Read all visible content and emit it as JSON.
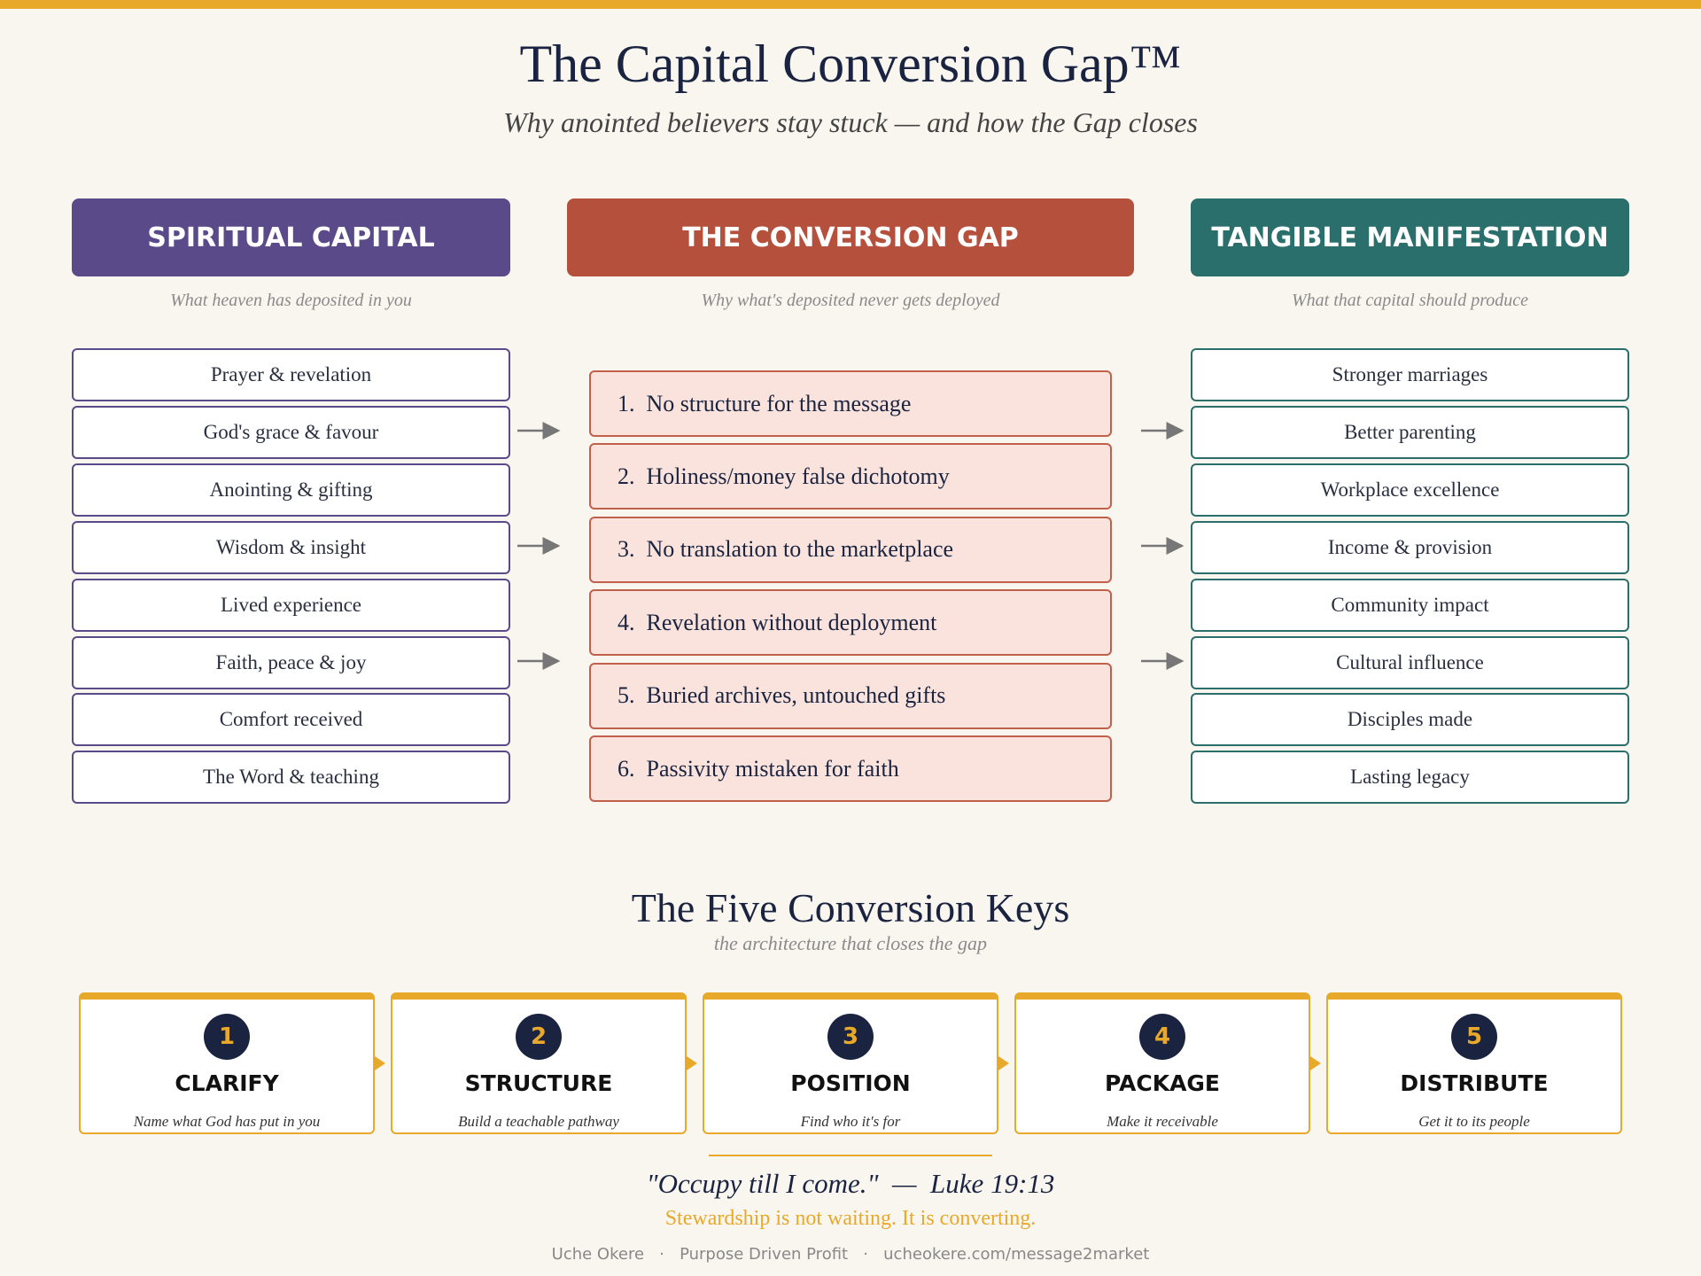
{
  "header": {
    "title": "The Capital Conversion Gap™",
    "subtitle": "Why anointed believers stay stuck — and how the Gap closes"
  },
  "columns": [
    {
      "title": "SPIRITUAL CAPITAL",
      "subtitle": "What heaven has deposited in you",
      "items": [
        "Prayer & revelation",
        "God's grace & favour",
        "Anointing & gifting",
        "Wisdom & insight",
        "Lived experience",
        "Faith, peace & joy",
        "Comfort received",
        "The Word & teaching"
      ]
    },
    {
      "title": "THE CONVERSION GAP",
      "subtitle": "Why what's deposited never gets deployed",
      "items": [
        "1.  No structure for the message",
        "2.  Holiness/money false dichotomy",
        "3.  No translation to the marketplace",
        "4.  Revelation without deployment",
        "5.  Buried archives, untouched gifts",
        "6.  Passivity mistaken for faith"
      ]
    },
    {
      "title": "TANGIBLE MANIFESTATION",
      "subtitle": "What that capital should produce",
      "items": [
        "Stronger marriages",
        "Better parenting",
        "Workplace excellence",
        "Income & provision",
        "Community impact",
        "Cultural influence",
        "Disciples made",
        "Lasting legacy"
      ]
    }
  ],
  "keys": {
    "title": "The Five Conversion Keys",
    "subtitle": "the architecture that closes the gap",
    "items": [
      {
        "number": "1",
        "name": "CLARIFY",
        "description": "Name what God has put in you"
      },
      {
        "number": "2",
        "name": "STRUCTURE",
        "description": "Build a teachable pathway"
      },
      {
        "number": "3",
        "name": "POSITION",
        "description": "Find who it's for"
      },
      {
        "number": "4",
        "name": "PACKAGE",
        "description": "Make it receivable"
      },
      {
        "number": "5",
        "name": "DISTRIBUTE",
        "description": "Get it to its people"
      }
    ]
  },
  "quote": "\"Occupy till I come.\"  —  Luke 19:13",
  "tagline": "Stewardship is not waiting.  It is converting.",
  "footer": "Uche Okere   ·   Purpose Driven Profit   ·   ucheokere.com/message2market"
}
